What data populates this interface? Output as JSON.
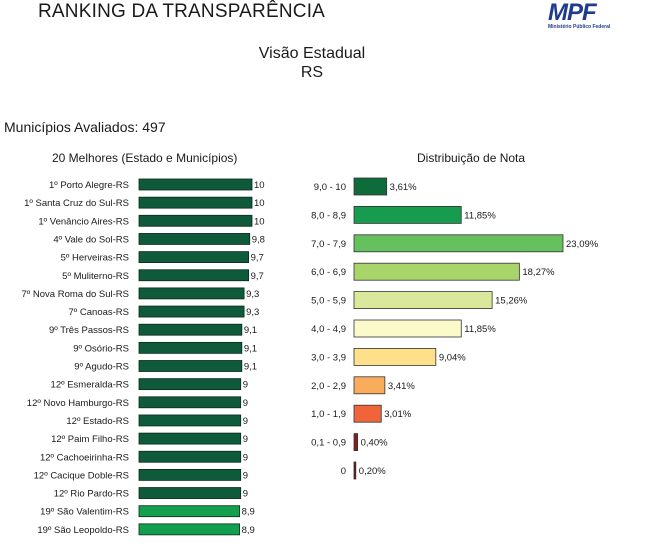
{
  "header": {
    "title": "RANKING DA TRANSPARÊNCIA",
    "logo_text": "MPF",
    "logo_subtitle": "Ministério Público Federal"
  },
  "view": {
    "line1": "Visão Estadual",
    "line2": "RS"
  },
  "evaluated_label": "Municípios Avaliados: 497",
  "chart_data": [
    {
      "type": "bar",
      "orientation": "horizontal",
      "title": "20 Melhores (Estado e Municípios)",
      "categories": [
        "1º Porto Alegre-RS",
        "1º Santa Cruz do Sul-RS",
        "1º Venâncio Aires-RS",
        "4º Vale do Sol-RS",
        "5º Herveiras-RS",
        "5º Muliterno-RS",
        "7º Nova Roma do Sul-RS",
        "7º Canoas-RS",
        "9º Três Passos-RS",
        "9º Osório-RS",
        "9º Agudo-RS",
        "12º Esmeralda-RS",
        "12º Novo Hamburgo-RS",
        "12º Estado-RS",
        "12º Paim Filho-RS",
        "12º Cachoeirinha-RS",
        "12º Cacique Doble-RS",
        "12º Rio Pardo-RS",
        "19º São Valentim-RS",
        "19º São Leopoldo-RS"
      ],
      "values": [
        10,
        10,
        10,
        9.8,
        9.7,
        9.7,
        9.3,
        9.3,
        9.1,
        9.1,
        9.1,
        9,
        9,
        9,
        9,
        9,
        9,
        9,
        8.9,
        8.9
      ],
      "value_labels": [
        "10",
        "10",
        "10",
        "9,8",
        "9,7",
        "9,7",
        "9,3",
        "9,3",
        "9,1",
        "9,1",
        "9,1",
        "9",
        "9",
        "9",
        "9",
        "9",
        "9",
        "9",
        "8,9",
        "8,9"
      ],
      "xlim": [
        0,
        10
      ],
      "colors": {
        "default": "#0e5a3b",
        "last": "#13a04e"
      }
    },
    {
      "type": "bar",
      "orientation": "horizontal",
      "title": "Distribuição de Nota",
      "categories": [
        "9,0 - 10",
        "8,0 - 8,9",
        "7,0 - 7,9",
        "6,0 - 6,9",
        "5,0 - 5,9",
        "4,0 - 4,9",
        "3,0 - 3,9",
        "2,0 - 2,9",
        "1,0 - 1,9",
        "0,1 - 0,9",
        "0"
      ],
      "values": [
        3.61,
        11.85,
        23.09,
        18.27,
        15.26,
        11.85,
        9.04,
        3.41,
        3.01,
        0.4,
        0.2
      ],
      "value_labels": [
        "3,61%",
        "11,85%",
        "23,09%",
        "18,27%",
        "15,26%",
        "11,85%",
        "9,04%",
        "3,41%",
        "3,01%",
        "0,40%",
        "0,20%"
      ],
      "colors": [
        "#0e6b3a",
        "#169b4f",
        "#66c05e",
        "#a8d46a",
        "#d9e89a",
        "#fbfacb",
        "#fee08b",
        "#f9ad5c",
        "#f0643c",
        "#8b1a1a",
        "#6e1010"
      ]
    }
  ]
}
